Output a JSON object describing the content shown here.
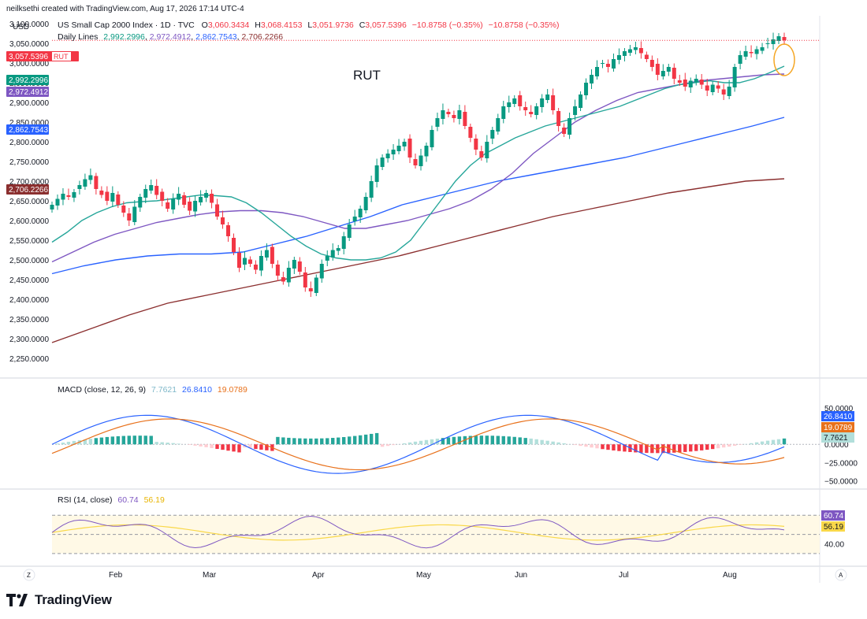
{
  "header": {
    "credit": "neilksethi created with TradingView.com, Aug 17, 2026 17:14 UTC-4",
    "symbol_title": "US Small Cap 2000 Index · 1D · TVC",
    "ohlc": {
      "o_label": "O",
      "o": "3,060.3434",
      "h_label": "H",
      "h": "3,068.4153",
      "l_label": "L",
      "l": "3,051.9736",
      "c_label": "C",
      "c": "3,057.5396",
      "change": "−10.8758 (−0.35%)",
      "change2": "−10.8758 (−0.35%)"
    },
    "daily_lines_label": "Daily Lines",
    "daily_lines_values": [
      "2,992.2996",
      "2,972.4912",
      "2,862.7543",
      "2,706.2266"
    ],
    "currency": "USD"
  },
  "annotation": "RUT",
  "price_badges": [
    {
      "value": "3,057.5396",
      "tag": "RUT",
      "color": "#f23645"
    },
    {
      "value": "2,992.2996",
      "color": "#089981"
    },
    {
      "value": "2,972.4912",
      "color": "#7e57c2"
    },
    {
      "value": "2,862.7543",
      "color": "#2962ff"
    },
    {
      "value": "2,706.2266",
      "color": "#8b2f2f"
    }
  ],
  "macd": {
    "label": "MACD (close, 12, 26, 9)",
    "values": [
      "7.7621",
      "26.8410",
      "19.0789"
    ],
    "value_colors": [
      "#7fb8c9",
      "#2962ff",
      "#e8711b"
    ],
    "badges": [
      {
        "value": "26.8410",
        "color": "#2962ff"
      },
      {
        "value": "19.0789",
        "color": "#e8711b"
      },
      {
        "value": "7.7621",
        "color": "#b2dfdb"
      }
    ],
    "ticks": [
      "50.0000",
      "0.0000",
      "−25.0000",
      "−50.0000"
    ]
  },
  "rsi": {
    "label": "RSI (14, close)",
    "values": [
      "60.74",
      "56.19"
    ],
    "badges": [
      {
        "value": "60.74",
        "color": "#7e57c2"
      },
      {
        "value": "56.19",
        "color": "#f9d849"
      }
    ],
    "ticks": [
      "40.00"
    ]
  },
  "xaxis": {
    "months": [
      "Feb",
      "Mar",
      "Apr",
      "May",
      "Jun",
      "Jul",
      "Aug"
    ],
    "left_button": "Z",
    "right_button": "A"
  },
  "brand": "TradingView",
  "colors": {
    "up": "#089981",
    "down": "#f23645",
    "sma20": "#26a69a",
    "sma50": "#7e57c2",
    "sma100": "#2962ff",
    "sma200": "#8b2f2f"
  },
  "chart_data": {
    "type": "candlestick",
    "title": "RUT",
    "x_range": [
      "2026-01-15",
      "2026-08-17"
    ],
    "ylim": [
      2200,
      3120
    ],
    "y_ticks": [
      3100,
      3050,
      3000,
      2950,
      2900,
      2850,
      2800,
      2750,
      2700,
      2650,
      2600,
      2550,
      2500,
      2450,
      2400,
      2350,
      2300,
      2250
    ],
    "candles_close": [
      2640,
      2655,
      2668,
      2660,
      2672,
      2690,
      2705,
      2715,
      2680,
      2665,
      2650,
      2670,
      2640,
      2620,
      2600,
      2635,
      2660,
      2680,
      2690,
      2665,
      2650,
      2630,
      2655,
      2668,
      2640,
      2625,
      2650,
      2660,
      2670,
      2645,
      2610,
      2590,
      2560,
      2520,
      2480,
      2505,
      2490,
      2475,
      2510,
      2525,
      2490,
      2460,
      2445,
      2480,
      2500,
      2470,
      2430,
      2420,
      2455,
      2490,
      2510,
      2525,
      2530,
      2560,
      2590,
      2610,
      2630,
      2660,
      2700,
      2740,
      2760,
      2770,
      2780,
      2790,
      2800,
      2760,
      2740,
      2765,
      2790,
      2830,
      2860,
      2880,
      2870,
      2860,
      2880,
      2840,
      2810,
      2780,
      2760,
      2800,
      2830,
      2860,
      2890,
      2900,
      2910,
      2890,
      2880,
      2870,
      2890,
      2910,
      2920,
      2880,
      2840,
      2820,
      2860,
      2890,
      2920,
      2950,
      2970,
      2990,
      3000,
      2990,
      3010,
      3020,
      3030,
      3035,
      3040,
      3025,
      3010,
      2990,
      2970,
      2980,
      2990,
      2960,
      2950,
      2940,
      2955,
      2960,
      2945,
      2930,
      2945,
      2935,
      2920,
      2940,
      2990,
      3020,
      3030,
      3025,
      3035,
      3040,
      3050,
      3060,
      3068,
      3057.54
    ],
    "series": [
      {
        "name": "",
        "values": [
          2545,
          2570,
          2600,
          2620,
          2635,
          2645,
          2648,
          2650,
          2655,
          2660,
          2665,
          2663,
          2660,
          2645,
          2620,
          2590,
          2560,
          2535,
          2515,
          2505,
          2500,
          2500,
          2505,
          2520,
          2550,
          2600,
          2650,
          2700,
          2740,
          2770,
          2790,
          2810,
          2825,
          2840,
          2850,
          2860,
          2870,
          2880,
          2890,
          2905,
          2920,
          2935,
          2945,
          2950,
          2955,
          2950,
          2950,
          2960,
          2975,
          2992
        ]
      },
      {
        "name": "",
        "values": [
          2495,
          2520,
          2545,
          2565,
          2580,
          2595,
          2605,
          2615,
          2622,
          2625,
          2625,
          2620,
          2610,
          2595,
          2580,
          2580,
          2590,
          2600,
          2615,
          2630,
          2650,
          2680,
          2720,
          2770,
          2810,
          2850,
          2880,
          2905,
          2925,
          2935,
          2945,
          2955,
          2960,
          2965,
          2970,
          2972
        ]
      },
      {
        "name": "",
        "values": [
          2465,
          2485,
          2500,
          2510,
          2515,
          2515,
          2520,
          2540,
          2560,
          2585,
          2610,
          2640,
          2660,
          2680,
          2700,
          2715,
          2730,
          2745,
          2760,
          2780,
          2800,
          2820,
          2840,
          2862
        ]
      },
      {
        "name": "",
        "values": [
          2290,
          2325,
          2360,
          2390,
          2410,
          2430,
          2450,
          2470,
          2490,
          2510,
          2535,
          2560,
          2585,
          2610,
          2630,
          2650,
          2670,
          2685,
          2700,
          2706
        ]
      }
    ],
    "macd_ylim": [
      -55,
      75
    ],
    "rsi_ylim": [
      20,
      90
    ]
  }
}
